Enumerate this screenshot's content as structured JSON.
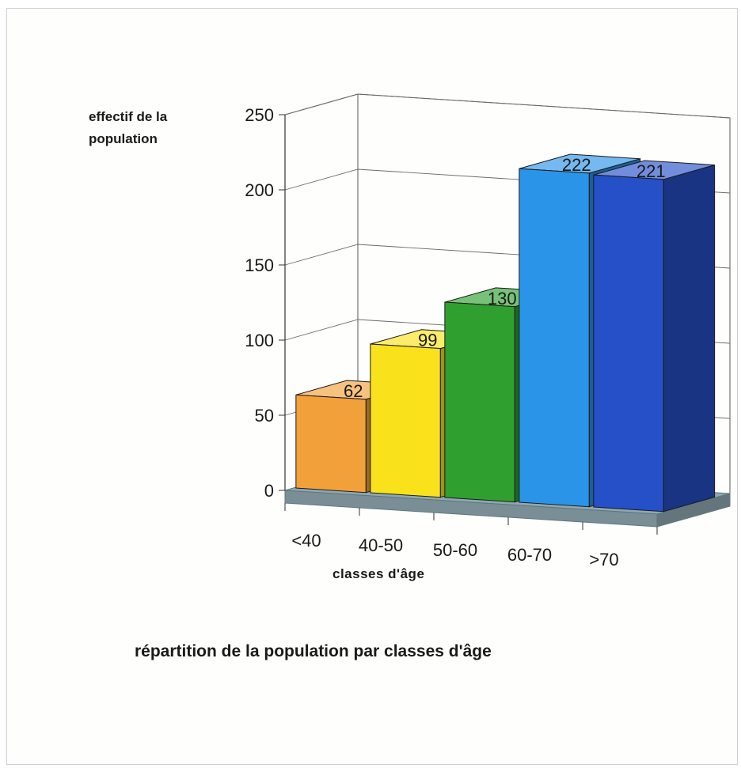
{
  "chart_data": {
    "type": "bar",
    "title": "répartition de la population par classes d'âge",
    "xlabel": "classes d'âge",
    "ylabel": "effectif de la population",
    "categories": [
      "<40",
      "40-50",
      "50-60",
      "60-70",
      ">70"
    ],
    "values": [
      62,
      99,
      130,
      222,
      221
    ],
    "data_labels": [
      "62",
      "99",
      "130",
      "222",
      "221"
    ],
    "y_ticks": [
      "0",
      "50",
      "100",
      "150",
      "200",
      "250"
    ],
    "ylim": [
      0,
      250
    ],
    "grid": true,
    "legend": false,
    "style": "3d",
    "colors": [
      "#f2a13a",
      "#f9e21c",
      "#2fa02f",
      "#2a94e8",
      "#2650c8"
    ],
    "floor_color": "#8fa7b0"
  }
}
